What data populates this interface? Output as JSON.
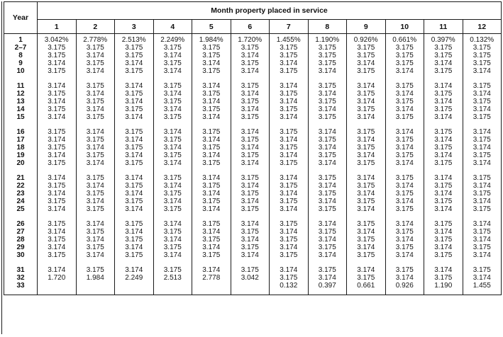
{
  "colors": {
    "ink": "#1a1a1a",
    "paper": "#ffffff"
  },
  "table": {
    "corner_header": "Year",
    "span_header": "Month property placed in service",
    "month_columns": [
      "1",
      "2",
      "3",
      "4",
      "5",
      "6",
      "7",
      "8",
      "9",
      "10",
      "11",
      "12"
    ],
    "row_groups": [
      {
        "rows": [
          {
            "year": "1",
            "values": [
              "3.042%",
              "2.778%",
              "2.513%",
              "2.249%",
              "1.984%",
              "1.720%",
              "1.455%",
              "1.190%",
              "0.926%",
              "0.661%",
              "0.397%",
              "0.132%"
            ]
          },
          {
            "year": "2–7",
            "values": [
              "3.175",
              "3.175",
              "3.175",
              "3.175",
              "3.175",
              "3.175",
              "3.175",
              "3.175",
              "3.175",
              "3.175",
              "3.175",
              "3.175"
            ]
          },
          {
            "year": "8",
            "values": [
              "3.175",
              "3.174",
              "3.175",
              "3.174",
              "3.175",
              "3.174",
              "3.175",
              "3.175",
              "3.175",
              "3.175",
              "3.175",
              "3.175"
            ]
          },
          {
            "year": "9",
            "values": [
              "3.174",
              "3.175",
              "3.174",
              "3.175",
              "3.174",
              "3.175",
              "3.174",
              "3.175",
              "3.174",
              "3.175",
              "3.174",
              "3.175"
            ]
          },
          {
            "year": "10",
            "values": [
              "3.175",
              "3.174",
              "3.175",
              "3.174",
              "3.175",
              "3.174",
              "3.175",
              "3.174",
              "3.175",
              "3.174",
              "3.175",
              "3.174"
            ]
          }
        ]
      },
      {
        "rows": [
          {
            "year": "11",
            "values": [
              "3.174",
              "3.175",
              "3.174",
              "3.175",
              "3.174",
              "3.175",
              "3.174",
              "3.175",
              "3.174",
              "3.175",
              "3.174",
              "3.175"
            ]
          },
          {
            "year": "12",
            "values": [
              "3.175",
              "3.174",
              "3.175",
              "3.174",
              "3.175",
              "3.174",
              "3.175",
              "3.174",
              "3.175",
              "3.174",
              "3.175",
              "3.174"
            ]
          },
          {
            "year": "13",
            "values": [
              "3.174",
              "3.175",
              "3.174",
              "3.175",
              "3.174",
              "3.175",
              "3.174",
              "3.175",
              "3.174",
              "3.175",
              "3.174",
              "3.175"
            ]
          },
          {
            "year": "14",
            "values": [
              "3.175",
              "3.174",
              "3.175",
              "3.174",
              "3.175",
              "3.174",
              "3.175",
              "3.174",
              "3.175",
              "3.174",
              "3.175",
              "3.174"
            ]
          },
          {
            "year": "15",
            "values": [
              "3.174",
              "3.175",
              "3.174",
              "3.175",
              "3.174",
              "3.175",
              "3.174",
              "3.175",
              "3.174",
              "3.175",
              "3.174",
              "3.175"
            ]
          }
        ]
      },
      {
        "rows": [
          {
            "year": "16",
            "values": [
              "3.175",
              "3.174",
              "3.175",
              "3.174",
              "3.175",
              "3.174",
              "3.175",
              "3.174",
              "3.175",
              "3.174",
              "3.175",
              "3.174"
            ]
          },
          {
            "year": "17",
            "values": [
              "3.174",
              "3.175",
              "3.174",
              "3.175",
              "3.174",
              "3.175",
              "3.174",
              "3.175",
              "3.174",
              "3.175",
              "3.174",
              "3.175"
            ]
          },
          {
            "year": "18",
            "values": [
              "3.175",
              "3.174",
              "3.175",
              "3.174",
              "3.175",
              "3.174",
              "3.175",
              "3.174",
              "3.175",
              "3.174",
              "3.175",
              "3.174"
            ]
          },
          {
            "year": "19",
            "values": [
              "3.174",
              "3.175",
              "3.174",
              "3.175",
              "3.174",
              "3.175",
              "3.174",
              "3.175",
              "3.174",
              "3.175",
              "3.174",
              "3.175"
            ]
          },
          {
            "year": "20",
            "values": [
              "3.175",
              "3.174",
              "3.175",
              "3.174",
              "3.175",
              "3.174",
              "3.175",
              "3.174",
              "3.175",
              "3.174",
              "3.175",
              "3.174"
            ]
          }
        ]
      },
      {
        "rows": [
          {
            "year": "21",
            "values": [
              "3.174",
              "3.175",
              "3.174",
              "3.175",
              "3.174",
              "3.175",
              "3.174",
              "3.175",
              "3.174",
              "3.175",
              "3.174",
              "3.175"
            ]
          },
          {
            "year": "22",
            "values": [
              "3.175",
              "3.174",
              "3.175",
              "3.174",
              "3.175",
              "3.174",
              "3.175",
              "3.174",
              "3.175",
              "3.174",
              "3.175",
              "3.174"
            ]
          },
          {
            "year": "23",
            "values": [
              "3.174",
              "3.175",
              "3.174",
              "3.175",
              "3.174",
              "3.175",
              "3.174",
              "3.175",
              "3.174",
              "3.175",
              "3.174",
              "3.175"
            ]
          },
          {
            "year": "24",
            "values": [
              "3.175",
              "3.174",
              "3.175",
              "3.174",
              "3.175",
              "3.174",
              "3.175",
              "3.174",
              "3.175",
              "3.174",
              "3.175",
              "3.174"
            ]
          },
          {
            "year": "25",
            "values": [
              "3.174",
              "3.175",
              "3.174",
              "3.175",
              "3.174",
              "3.175",
              "3.174",
              "3.175",
              "3.174",
              "3.175",
              "3.174",
              "3.175"
            ]
          }
        ]
      },
      {
        "rows": [
          {
            "year": "26",
            "values": [
              "3.175",
              "3.174",
              "3.175",
              "3.174",
              "3.175",
              "3.174",
              "3.175",
              "3.174",
              "3.175",
              "3.174",
              "3.175",
              "3.174"
            ]
          },
          {
            "year": "27",
            "values": [
              "3.174",
              "3.175",
              "3.174",
              "3.175",
              "3.174",
              "3.175",
              "3.174",
              "3.175",
              "3.174",
              "3.175",
              "3.174",
              "3.175"
            ]
          },
          {
            "year": "28",
            "values": [
              "3.175",
              "3.174",
              "3.175",
              "3.174",
              "3.175",
              "3.174",
              "3.175",
              "3.174",
              "3.175",
              "3.174",
              "3.175",
              "3.174"
            ]
          },
          {
            "year": "29",
            "values": [
              "3.174",
              "3.175",
              "3.174",
              "3.175",
              "3.174",
              "3.175",
              "3.174",
              "3.175",
              "3.174",
              "3.175",
              "3.174",
              "3.175"
            ]
          },
          {
            "year": "30",
            "values": [
              "3.175",
              "3.174",
              "3.175",
              "3.174",
              "3.175",
              "3.174",
              "3.175",
              "3.174",
              "3.175",
              "3.174",
              "3.175",
              "3.174"
            ]
          }
        ]
      },
      {
        "rows": [
          {
            "year": "31",
            "values": [
              "3.174",
              "3.175",
              "3.174",
              "3.175",
              "3.174",
              "3.175",
              "3.174",
              "3.175",
              "3.174",
              "3.175",
              "3.174",
              "3.175"
            ]
          },
          {
            "year": "32",
            "values": [
              "1.720",
              "1.984",
              "2.249",
              "2.513",
              "2.778",
              "3.042",
              "3.175",
              "3.174",
              "3.175",
              "3.174",
              "3.175",
              "3.174"
            ]
          },
          {
            "year": "33",
            "values": [
              "",
              "",
              "",
              "",
              "",
              "",
              "0.132",
              "0.397",
              "0.661",
              "0.926",
              "1.190",
              "1.455"
            ]
          }
        ]
      }
    ]
  }
}
